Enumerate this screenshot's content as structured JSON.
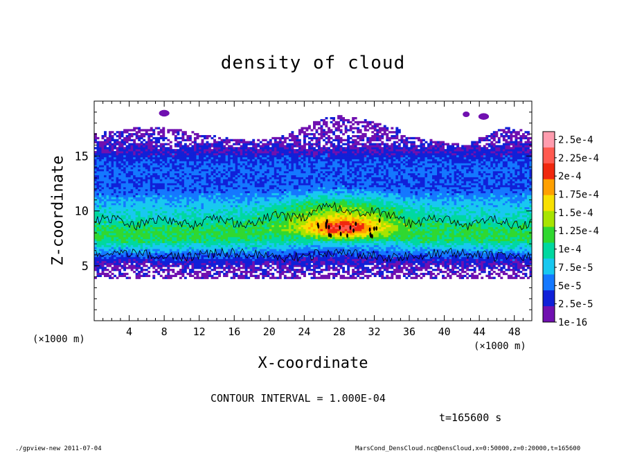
{
  "chart_data": {
    "type": "heatmap",
    "title": "density of cloud",
    "xlabel": "X-coordinate",
    "ylabel": "Z-coordinate",
    "x_unit_label": "(×1000 m)",
    "x_unit_label_right": "(×1000 m)",
    "xlim": [
      0,
      50
    ],
    "ylim": [
      0,
      20
    ],
    "x_ticks": [
      "4",
      "8",
      "12",
      "16",
      "20",
      "24",
      "28",
      "32",
      "36",
      "40",
      "44",
      "48"
    ],
    "x_tick_values": [
      4,
      8,
      12,
      16,
      20,
      24,
      28,
      32,
      36,
      40,
      44,
      48
    ],
    "y_ticks": [
      "5",
      "10",
      "15"
    ],
    "y_tick_values": [
      5,
      10,
      15
    ],
    "colorbar": {
      "labels": [
        "2.5e-4",
        "2.25e-4",
        "2e-4",
        "1.75e-4",
        "1.5e-4",
        "1.25e-4",
        "1e-4",
        "7.5e-5",
        "5e-5",
        "2.5e-5",
        "1e-16"
      ],
      "levels": [
        0.00025,
        0.000225,
        0.0002,
        0.000175,
        0.00015,
        0.000125,
        0.0001,
        7.5e-05,
        5e-05,
        2.5e-05,
        1e-16
      ],
      "colors": [
        "#ff9cae",
        "#ff5a50",
        "#f0280e",
        "#ffa000",
        "#f8e000",
        "#a8e400",
        "#30d830",
        "#00d8a0",
        "#18c8f0",
        "#1478ff",
        "#1020d8",
        "#7010b0"
      ]
    },
    "contour_interval": 0.0001,
    "cloud_layers": {
      "upper_top_z": 17,
      "upper_dense_z": [
        12,
        15
      ],
      "main_layer_z": [
        4,
        9
      ],
      "core_max_x": 28,
      "core_max_z": 8.5,
      "core_value_max": 0.00023
    }
  },
  "annotations": {
    "contour_note": "CONTOUR INTERVAL = 1.000E-04",
    "time_note": "t=165600 s",
    "footer_left": "./gpview-new 2011-07-04",
    "footer_right": "MarsCond_DensCloud.nc@DensCloud,x=0:50000,z=0:20000,t=165600"
  },
  "colors": {
    "axis": "#000000",
    "background": "#ffffff"
  }
}
